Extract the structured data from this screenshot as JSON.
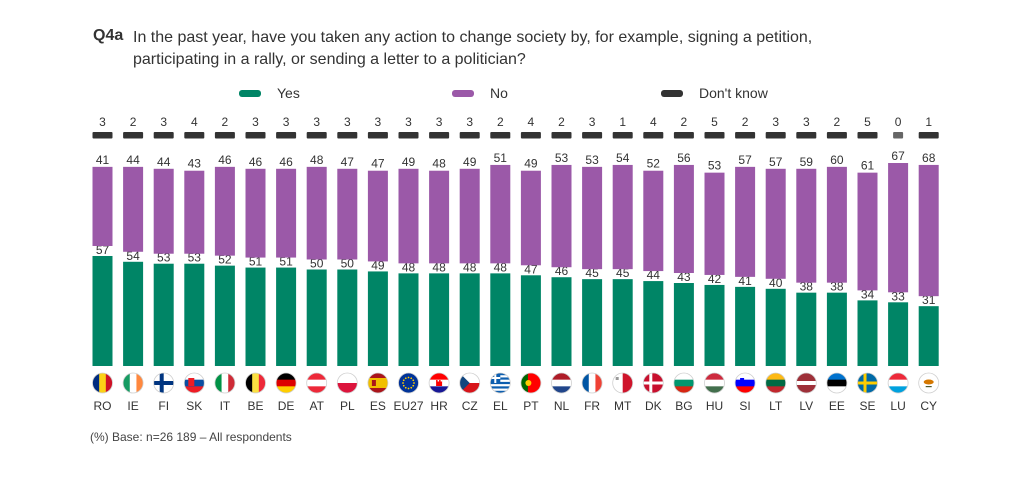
{
  "question": {
    "id": "Q4a",
    "text": "In the past year, have you taken any action to change society by, for example, signing a petition, participating in a rally, or sending a letter to a politician?"
  },
  "footnote": "(%) Base: n=26 189 – All respondents",
  "colors": {
    "yes": "#008566",
    "no": "#9b59a8",
    "dont_know": "#333333"
  },
  "chart_data": {
    "type": "bar",
    "stacked": true,
    "unit": "%",
    "categories": [
      "RO",
      "IE",
      "FI",
      "SK",
      "IT",
      "BE",
      "DE",
      "AT",
      "PL",
      "ES",
      "EU27",
      "HR",
      "CZ",
      "EL",
      "PT",
      "NL",
      "FR",
      "MT",
      "DK",
      "BG",
      "HU",
      "SI",
      "LT",
      "LV",
      "EE",
      "SE",
      "LU",
      "CY"
    ],
    "flag_icons": [
      "flag-ro-icon",
      "flag-ie-icon",
      "flag-fi-icon",
      "flag-sk-icon",
      "flag-it-icon",
      "flag-be-icon",
      "flag-de-icon",
      "flag-at-icon",
      "flag-pl-icon",
      "flag-es-icon",
      "flag-eu-icon",
      "flag-hr-icon",
      "flag-cz-icon",
      "flag-el-icon",
      "flag-pt-icon",
      "flag-nl-icon",
      "flag-fr-icon",
      "flag-mt-icon",
      "flag-dk-icon",
      "flag-bg-icon",
      "flag-hu-icon",
      "flag-si-icon",
      "flag-lt-icon",
      "flag-lv-icon",
      "flag-ee-icon",
      "flag-se-icon",
      "flag-lu-icon",
      "flag-cy-icon"
    ],
    "series": [
      {
        "name": "Yes",
        "values": [
          57,
          54,
          53,
          53,
          52,
          51,
          51,
          50,
          50,
          49,
          48,
          48,
          48,
          48,
          47,
          46,
          45,
          45,
          44,
          43,
          42,
          41,
          40,
          38,
          38,
          34,
          33,
          31
        ]
      },
      {
        "name": "No",
        "values": [
          41,
          44,
          44,
          43,
          46,
          46,
          46,
          48,
          47,
          47,
          49,
          48,
          49,
          51,
          49,
          53,
          53,
          54,
          52,
          56,
          53,
          57,
          57,
          59,
          60,
          61,
          67,
          68
        ]
      },
      {
        "name": "Don't know",
        "values": [
          3,
          2,
          3,
          4,
          2,
          3,
          3,
          3,
          3,
          3,
          3,
          3,
          3,
          2,
          4,
          2,
          3,
          1,
          4,
          2,
          5,
          2,
          3,
          3,
          2,
          5,
          0,
          1
        ]
      }
    ],
    "legend_position": "top",
    "grid": false
  }
}
